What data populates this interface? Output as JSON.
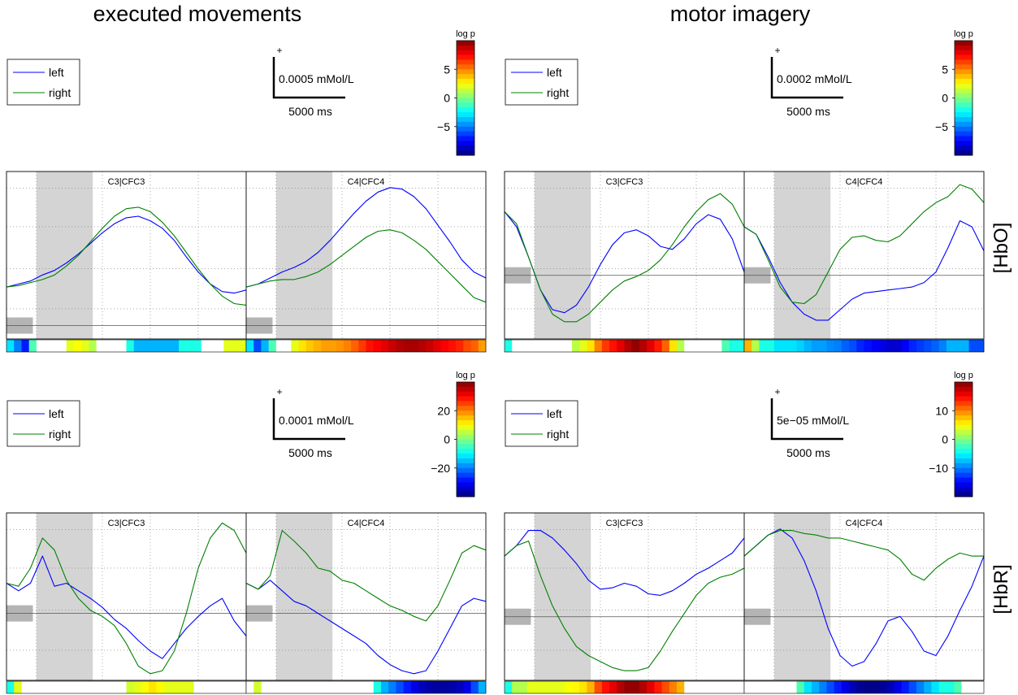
{
  "figure": {
    "column_titles": [
      "executed movements",
      "motor imagery"
    ],
    "row_labels": [
      "[HbO]",
      "[HbR]"
    ]
  },
  "colors": {
    "left": "#0000ff",
    "right": "#008000",
    "shade": "#d4d4d4",
    "baseline": "#555555"
  },
  "legend": {
    "left": "left",
    "right": "right"
  },
  "scalebar": {
    "plus": "+",
    "time_label": "5000 ms"
  },
  "panels": [
    {
      "scale_label": "0.0005 mMol/L",
      "colorbar_title": "log p",
      "colorbar_ticks": [
        "5",
        "0",
        "−5"
      ]
    },
    {
      "scale_label": "0.0002 mMol/L",
      "colorbar_title": "log p",
      "colorbar_ticks": [
        "5",
        "0",
        "−5"
      ]
    },
    {
      "scale_label": "0.0001 mMol/L",
      "colorbar_title": "log p",
      "colorbar_ticks": [
        "20",
        "0",
        "−20"
      ]
    },
    {
      "scale_label": "5e−05 mMol/L",
      "colorbar_title": "log p",
      "colorbar_ticks": [
        "10",
        "0",
        "−10"
      ]
    }
  ],
  "chart_data": [
    {
      "type": "line",
      "channels": [
        "C3|CFC3",
        "C4|CFC4"
      ],
      "ylim": [
        0,
        1
      ],
      "x": [
        0,
        0.05,
        0.1,
        0.15,
        0.2,
        0.25,
        0.3,
        0.35,
        0.4,
        0.45,
        0.5,
        0.55,
        0.6,
        0.65,
        0.7,
        0.75,
        0.8,
        0.85,
        0.9,
        0.95,
        1
      ],
      "series": [
        {
          "name": "left",
          "values": [
            [
              0.3,
              0.32,
              0.34,
              0.38,
              0.41,
              0.46,
              0.52,
              0.59,
              0.66,
              0.72,
              0.76,
              0.77,
              0.74,
              0.69,
              0.61,
              0.5,
              0.4,
              0.32,
              0.27,
              0.26,
              0.28
            ],
            [
              0.3,
              0.32,
              0.36,
              0.4,
              0.43,
              0.47,
              0.53,
              0.61,
              0.7,
              0.79,
              0.87,
              0.93,
              0.96,
              0.95,
              0.9,
              0.82,
              0.71,
              0.6,
              0.48,
              0.4,
              0.36
            ]
          ]
        },
        {
          "name": "right",
          "values": [
            [
              0.3,
              0.31,
              0.33,
              0.35,
              0.38,
              0.44,
              0.51,
              0.6,
              0.69,
              0.77,
              0.82,
              0.83,
              0.8,
              0.73,
              0.64,
              0.53,
              0.42,
              0.32,
              0.24,
              0.19,
              0.18
            ],
            [
              0.3,
              0.32,
              0.34,
              0.35,
              0.35,
              0.37,
              0.4,
              0.45,
              0.51,
              0.57,
              0.63,
              0.67,
              0.68,
              0.66,
              0.61,
              0.55,
              0.47,
              0.39,
              0.31,
              0.23,
              0.2
            ]
          ]
        }
      ],
      "pvalue_strip": [
        [
          0.35,
          0.25,
          0.15,
          0.45,
          0.5,
          0.5,
          0.5,
          0.5,
          0.6,
          0.62,
          0.6,
          0.55,
          0.5,
          0.5,
          0.5,
          0.5,
          0.4,
          0.3,
          0.3,
          0.3,
          0.3,
          0.3,
          0.3,
          0.4,
          0.4,
          0.4,
          0.5,
          0.5,
          0.5,
          0.6,
          0.6,
          0.6
        ],
        [
          0.35,
          0.2,
          0.3,
          0.45,
          0.5,
          0.5,
          0.6,
          0.65,
          0.68,
          0.7,
          0.72,
          0.72,
          0.73,
          0.75,
          0.78,
          0.82,
          0.86,
          0.88,
          0.9,
          0.93,
          0.95,
          0.96,
          0.96,
          0.95,
          0.93,
          0.9,
          0.88,
          0.86,
          0.84,
          0.8,
          0.78,
          0.72
        ]
      ]
    },
    {
      "type": "line",
      "channels": [
        "C3|CFC3",
        "C4|CFC4"
      ],
      "ylim": [
        0,
        1
      ],
      "x": [
        0,
        0.05,
        0.1,
        0.15,
        0.2,
        0.25,
        0.3,
        0.35,
        0.4,
        0.45,
        0.5,
        0.55,
        0.6,
        0.65,
        0.7,
        0.75,
        0.8,
        0.85,
        0.9,
        0.95,
        1
      ],
      "series": [
        {
          "name": "left",
          "values": [
            [
              0.8,
              0.7,
              0.5,
              0.28,
              0.15,
              0.13,
              0.18,
              0.3,
              0.45,
              0.58,
              0.66,
              0.68,
              0.64,
              0.57,
              0.55,
              0.62,
              0.72,
              0.78,
              0.75,
              0.62,
              0.4
            ],
            [
              0.7,
              0.65,
              0.5,
              0.33,
              0.2,
              0.12,
              0.08,
              0.08,
              0.15,
              0.22,
              0.26,
              0.27,
              0.28,
              0.29,
              0.3,
              0.33,
              0.4,
              0.56,
              0.74,
              0.7,
              0.54
            ]
          ]
        },
        {
          "name": "right",
          "values": [
            [
              0.8,
              0.72,
              0.5,
              0.28,
              0.12,
              0.07,
              0.07,
              0.12,
              0.2,
              0.28,
              0.34,
              0.37,
              0.41,
              0.48,
              0.58,
              0.7,
              0.8,
              0.88,
              0.92,
              0.85,
              0.7
            ],
            [
              0.7,
              0.65,
              0.48,
              0.3,
              0.2,
              0.19,
              0.25,
              0.4,
              0.55,
              0.63,
              0.64,
              0.61,
              0.6,
              0.64,
              0.72,
              0.8,
              0.86,
              0.9,
              0.98,
              0.95,
              0.86
            ]
          ]
        }
      ],
      "pvalue_strip": [
        [
          0.4,
          0.5,
          0.48,
          0.5,
          0.5,
          0.5,
          0.5,
          0.5,
          0.52,
          0.56,
          0.6,
          0.65,
          0.75,
          0.82,
          0.86,
          0.9,
          0.95,
          0.98,
          0.95,
          0.9,
          0.85,
          0.78,
          0.65,
          0.55,
          0.5,
          0.5,
          0.5,
          0.5,
          0.5,
          0.45,
          0.4,
          0.4
        ],
        [
          0.7,
          0.55,
          0.4,
          0.4,
          0.35,
          0.35,
          0.35,
          0.33,
          0.3,
          0.28,
          0.28,
          0.26,
          0.25,
          0.22,
          0.2,
          0.16,
          0.14,
          0.12,
          0.1,
          0.08,
          0.08,
          0.12,
          0.16,
          0.18,
          0.2,
          0.22,
          0.25,
          0.3,
          0.3,
          0.3,
          0.2,
          0.2
        ]
      ]
    },
    {
      "type": "line",
      "channels": [
        "C3|CFC3",
        "C4|CFC4"
      ],
      "ylim": [
        0,
        1
      ],
      "x": [
        0,
        0.05,
        0.1,
        0.15,
        0.2,
        0.25,
        0.3,
        0.35,
        0.4,
        0.45,
        0.5,
        0.55,
        0.6,
        0.65,
        0.7,
        0.75,
        0.8,
        0.85,
        0.9,
        0.95,
        1
      ],
      "series": [
        {
          "name": "left",
          "values": [
            [
              0.6,
              0.55,
              0.6,
              0.78,
              0.58,
              0.6,
              0.55,
              0.5,
              0.44,
              0.36,
              0.3,
              0.22,
              0.15,
              0.1,
              0.2,
              0.3,
              0.38,
              0.45,
              0.5,
              0.35,
              0.25
            ],
            [
              0.6,
              0.56,
              0.62,
              0.55,
              0.48,
              0.45,
              0.4,
              0.35,
              0.3,
              0.25,
              0.2,
              0.12,
              0.06,
              0.02,
              0.0,
              0.02,
              0.15,
              0.3,
              0.45,
              0.5,
              0.48
            ]
          ]
        },
        {
          "name": "right",
          "values": [
            [
              0.6,
              0.58,
              0.7,
              0.9,
              0.82,
              0.62,
              0.5,
              0.42,
              0.38,
              0.32,
              0.2,
              0.05,
              0.0,
              0.02,
              0.15,
              0.4,
              0.7,
              0.9,
              1.0,
              0.95,
              0.8
            ],
            [
              0.6,
              0.56,
              0.65,
              0.95,
              0.88,
              0.8,
              0.7,
              0.68,
              0.62,
              0.6,
              0.55,
              0.5,
              0.45,
              0.42,
              0.38,
              0.35,
              0.45,
              0.62,
              0.8,
              0.85,
              0.82
            ]
          ]
        }
      ],
      "pvalue_strip": [
        [
          0.4,
          0.6,
          0.5,
          0.5,
          0.5,
          0.5,
          0.5,
          0.5,
          0.5,
          0.5,
          0.5,
          0.5,
          0.5,
          0.5,
          0.5,
          0.5,
          0.58,
          0.6,
          0.62,
          0.65,
          0.63,
          0.6,
          0.6,
          0.6,
          0.6,
          0.5,
          0.5,
          0.5,
          0.5,
          0.5,
          0.5,
          0.5
        ],
        [
          0.5,
          0.58,
          0.5,
          0.5,
          0.5,
          0.5,
          0.5,
          0.5,
          0.5,
          0.5,
          0.5,
          0.5,
          0.5,
          0.5,
          0.5,
          0.5,
          0.5,
          0.4,
          0.3,
          0.25,
          0.2,
          0.15,
          0.1,
          0.06,
          0.04,
          0.03,
          0.03,
          0.04,
          0.06,
          0.1,
          0.2,
          0.3
        ]
      ]
    },
    {
      "type": "line",
      "channels": [
        "C3|CFC3",
        "C4|CFC4"
      ],
      "ylim": [
        0,
        1
      ],
      "x": [
        0,
        0.05,
        0.1,
        0.15,
        0.2,
        0.25,
        0.3,
        0.35,
        0.4,
        0.45,
        0.5,
        0.55,
        0.6,
        0.65,
        0.7,
        0.75,
        0.8,
        0.85,
        0.9,
        0.95,
        1
      ],
      "series": [
        {
          "name": "left",
          "values": [
            [
              0.78,
              0.85,
              0.95,
              0.95,
              0.9,
              0.82,
              0.73,
              0.62,
              0.56,
              0.57,
              0.6,
              0.58,
              0.53,
              0.52,
              0.55,
              0.6,
              0.66,
              0.7,
              0.75,
              0.8,
              0.9
            ],
            [
              0.78,
              0.85,
              0.92,
              0.96,
              0.9,
              0.75,
              0.55,
              0.3,
              0.12,
              0.05,
              0.08,
              0.2,
              0.35,
              0.38,
              0.28,
              0.15,
              0.12,
              0.25,
              0.42,
              0.58,
              0.78
            ]
          ]
        },
        {
          "name": "right",
          "values": [
            [
              0.78,
              0.85,
              0.88,
              0.65,
              0.45,
              0.3,
              0.18,
              0.12,
              0.08,
              0.04,
              0.02,
              0.02,
              0.04,
              0.15,
              0.28,
              0.4,
              0.52,
              0.6,
              0.64,
              0.66,
              0.7
            ],
            [
              0.78,
              0.85,
              0.92,
              0.95,
              0.95,
              0.93,
              0.92,
              0.9,
              0.9,
              0.88,
              0.86,
              0.84,
              0.82,
              0.76,
              0.66,
              0.62,
              0.7,
              0.76,
              0.8,
              0.78,
              0.78
            ]
          ]
        }
      ],
      "pvalue_strip": [
        [
          0.4,
          0.55,
          0.55,
          0.6,
          0.6,
          0.6,
          0.6,
          0.6,
          0.62,
          0.63,
          0.65,
          0.7,
          0.8,
          0.86,
          0.9,
          0.95,
          0.98,
          0.98,
          0.95,
          0.9,
          0.85,
          0.8,
          0.75,
          0.7,
          0.5,
          0.5,
          0.5,
          0.5,
          0.5,
          0.5,
          0.5,
          0.5
        ],
        [
          0.5,
          0.5,
          0.5,
          0.5,
          0.5,
          0.5,
          0.5,
          0.45,
          0.35,
          0.3,
          0.25,
          0.2,
          0.15,
          0.1,
          0.05,
          0.02,
          0.01,
          0.01,
          0.02,
          0.05,
          0.1,
          0.15,
          0.2,
          0.25,
          0.3,
          0.35,
          0.4,
          0.4,
          0.45,
          0.5,
          0.5,
          0.5
        ]
      ]
    }
  ]
}
